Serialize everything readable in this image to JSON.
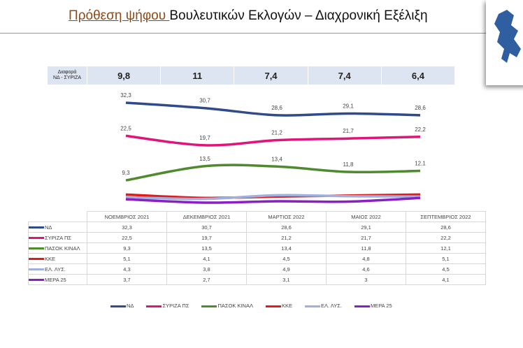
{
  "title": {
    "highlight": "Πρόθεση ψήφου ",
    "rest": "Βουλευτικών Εκλογών – Διαχρονική Εξέλιξη"
  },
  "diff_row": {
    "label_line1": "Διαφορά",
    "label_line2": "ΝΔ - ΣΥΡΙΖΑ",
    "values": [
      "9,8",
      "11",
      "7,4",
      "7,4",
      "6,4"
    ]
  },
  "chart_data": {
    "type": "line",
    "categories": [
      "ΝΟΕΜΒΡΙΟΣ 2021",
      "ΔΕΚΕΜΒΡΙΟΣ 2021",
      "ΜΑΡΤΙΟΣ 2022",
      "ΜΑΙΟΣ 2022",
      "ΣΕΠΤΕΜΒΡΙΟΣ 2022"
    ],
    "ylim": [
      0,
      33
    ],
    "grid": false,
    "legend": "bottom",
    "series": [
      {
        "name": "ΝΔ",
        "color": "#2f4b8a",
        "values": [
          32.3,
          30.7,
          28.6,
          29.1,
          28.6
        ],
        "labels": [
          "32,3",
          "30,7",
          "28,6",
          "29,1",
          "28,6"
        ],
        "show_labels": true
      },
      {
        "name": "ΣΥΡΙΖΑ ΠΣ",
        "color": "#e0157a",
        "values": [
          22.5,
          19.7,
          21.2,
          21.7,
          22.2
        ],
        "labels": [
          "22,5",
          "19,7",
          "21,2",
          "21,7",
          "22,2"
        ],
        "show_labels": true
      },
      {
        "name": "ΠΑΣΟΚ ΚΙΝΑΛ",
        "color": "#4f8a2e",
        "values": [
          9.3,
          13.5,
          13.4,
          11.8,
          12.1
        ],
        "labels": [
          "9,3",
          "13,5",
          "13,4",
          "11,8",
          "12,1"
        ],
        "show_labels": true
      },
      {
        "name": "ΚΚΕ",
        "color": "#e01b1b",
        "values": [
          5.1,
          4.1,
          4.5,
          4.8,
          5.1
        ],
        "labels": [
          "5,1",
          "4,1",
          "4,5",
          "4,8",
          "5,1"
        ],
        "show_labels": false
      },
      {
        "name": "ΕΛ. ΛΥΣ.",
        "color": "#9fb0dc",
        "values": [
          4.3,
          3.8,
          4.9,
          4.6,
          4.5
        ],
        "labels": [
          "4,3",
          "3,8",
          "4,9",
          "4,6",
          "4,5"
        ],
        "show_labels": false
      },
      {
        "name": "ΜΕΡΑ 25",
        "color": "#8a1fc4",
        "values": [
          3.7,
          2.7,
          3.1,
          3,
          4.1
        ],
        "labels": [
          "3,7",
          "2,7",
          "3,1",
          "3",
          "4,1"
        ],
        "show_labels": false
      }
    ]
  }
}
